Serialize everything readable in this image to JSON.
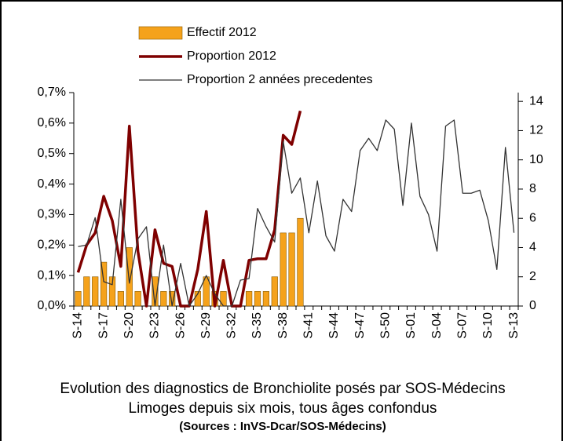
{
  "chart_data": {
    "type": "bar-line",
    "title": "Evolution des diagnostics de Bronchiolite posés par SOS-Médecins",
    "subtitle": "Limoges depuis six mois, tous âges confondus",
    "source": "(Sources : InVS-Dcar/SOS-Médecins)",
    "categories": [
      "S-14",
      null,
      null,
      "S-17",
      null,
      null,
      "S-20",
      null,
      null,
      "S-23",
      null,
      null,
      "S-26",
      null,
      null,
      "S-29",
      null,
      null,
      "S-32",
      null,
      null,
      "S-35",
      null,
      null,
      "S-38",
      null,
      null,
      "S-41",
      null,
      null,
      "S-44",
      null,
      null,
      "S-47",
      null,
      null,
      "S-50",
      null,
      null,
      "S-01",
      null,
      null,
      "S-04",
      null,
      null,
      "S-07",
      null,
      null,
      "S-10",
      null,
      null,
      "S-13"
    ],
    "series": [
      {
        "name": "Effectif 2012",
        "type": "bar",
        "axis": "y2",
        "color": "#f5a21b",
        "values": [
          1,
          2,
          2,
          3,
          2,
          1,
          4,
          1,
          0,
          2,
          1,
          1,
          0,
          0,
          1,
          2,
          1,
          1,
          0,
          0,
          1,
          1,
          1,
          2,
          5,
          5,
          6,
          null,
          null,
          null,
          null,
          null,
          null,
          null,
          null,
          null,
          null,
          null,
          null,
          null,
          null,
          null,
          null,
          null,
          null,
          null,
          null,
          null,
          null,
          null,
          null,
          null
        ]
      },
      {
        "name": "Proportion 2012",
        "type": "line",
        "axis": "y",
        "color": "#7f0000",
        "values": [
          0.11,
          0.2,
          0.24,
          0.36,
          0.28,
          0.13,
          0.59,
          0.18,
          0,
          0.25,
          0.14,
          0.13,
          0,
          0,
          0.12,
          0.31,
          0,
          0.15,
          0,
          0,
          0.15,
          0.155,
          0.155,
          0.25,
          0.56,
          0.53,
          0.64,
          null,
          null,
          null,
          null,
          null,
          null,
          null,
          null,
          null,
          null,
          null,
          null,
          null,
          null,
          null,
          null,
          null,
          null,
          null,
          null,
          null,
          null,
          null,
          null,
          null
        ]
      },
      {
        "name": "Proportion 2 années precedentes",
        "type": "line",
        "axis": "y",
        "color": "#333333",
        "values": [
          0.195,
          0.2,
          0.29,
          0.08,
          0.07,
          0.35,
          0.075,
          0.22,
          0.26,
          0,
          0.2,
          0,
          0.14,
          0,
          0.04,
          0.1,
          0.04,
          0,
          0,
          0.085,
          0.09,
          0.32,
          0.26,
          0.21,
          0.54,
          0.37,
          0.42,
          0.24,
          0.41,
          0.23,
          0.18,
          0.35,
          0.31,
          0.51,
          0.55,
          0.51,
          0.61,
          0.58,
          0.33,
          0.6,
          0.36,
          0.3,
          0.18,
          0.59,
          0.61,
          0.37,
          0.37,
          0.38,
          0.28,
          0.12,
          0.52,
          0.24
        ]
      }
    ],
    "ylim": [
      0,
      0.7
    ],
    "yticks": [
      {
        "value": 0,
        "label": "0,0%"
      },
      {
        "value": 0.1,
        "label": "0,1%"
      },
      {
        "value": 0.2,
        "label": "0,2%"
      },
      {
        "value": 0.3,
        "label": "0,3%"
      },
      {
        "value": 0.4,
        "label": "0,4%"
      },
      {
        "value": 0.5,
        "label": "0,5%"
      },
      {
        "value": 0.6,
        "label": "0,6%"
      },
      {
        "value": 0.7,
        "label": "0,7%"
      }
    ],
    "y2lim": [
      0,
      14.6
    ],
    "y2ticks": [
      0,
      2,
      4,
      6,
      8,
      10,
      12,
      14
    ],
    "legend": "top",
    "grid": false
  }
}
